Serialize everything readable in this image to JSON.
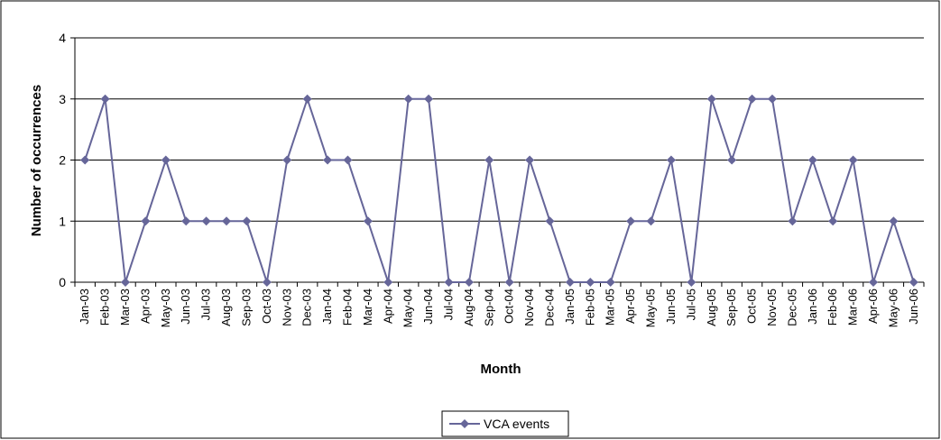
{
  "chart_data": {
    "type": "line",
    "xlabel": "Month",
    "ylabel": "Number of occurrences",
    "categories": [
      "Jan-03",
      "Feb-03",
      "Mar-03",
      "Apr-03",
      "May-03",
      "Jun-03",
      "Jul-03",
      "Aug-03",
      "Sep-03",
      "Oct-03",
      "Nov-03",
      "Dec-03",
      "Jan-04",
      "Feb-04",
      "Mar-04",
      "Apr-04",
      "May-04",
      "Jun-04",
      "Jul-04",
      "Aug-04",
      "Sep-04",
      "Oct-04",
      "Nov-04",
      "Dec-04",
      "Jan-05",
      "Feb-05",
      "Mar-05",
      "Apr-05",
      "May-05",
      "Jun-05",
      "Jul-05",
      "Aug-05",
      "Sep-05",
      "Oct-05",
      "Nov-05",
      "Dec-05",
      "Jan-06",
      "Feb-06",
      "Mar-06",
      "Apr-06",
      "May-06",
      "Jun-06"
    ],
    "series": [
      {
        "name": "VCA events",
        "color": "#666699",
        "values": [
          2,
          3,
          0,
          1,
          2,
          1,
          1,
          1,
          1,
          0,
          2,
          3,
          2,
          2,
          1,
          0,
          3,
          3,
          0,
          0,
          2,
          0,
          2,
          1,
          0,
          0,
          0,
          1,
          1,
          2,
          0,
          3,
          2,
          3,
          3,
          1,
          2,
          1,
          2,
          0,
          1,
          0
        ]
      }
    ],
    "ylim": [
      0,
      4
    ],
    "yticks": [
      0,
      1,
      2,
      3,
      4
    ],
    "grid": true,
    "legend": "bottom"
  }
}
